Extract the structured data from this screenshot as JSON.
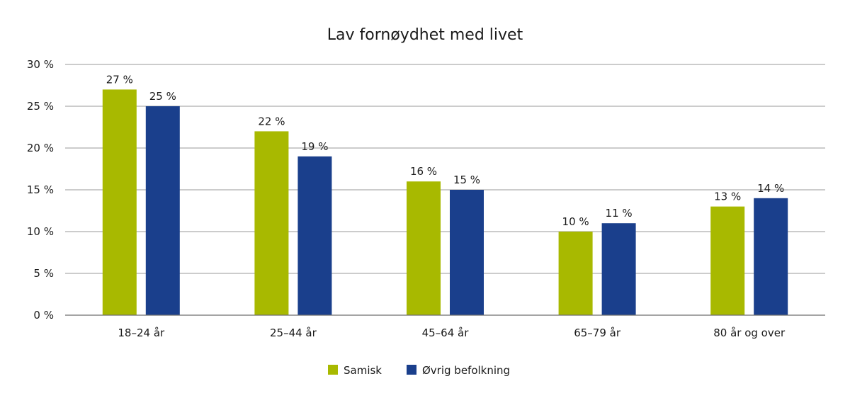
{
  "chart_data": {
    "type": "bar",
    "title": "Lav fornøydhet med livet",
    "categories": [
      "18–24 år",
      "25–44 år",
      "45–64 år",
      "65–79 år",
      "80 år og over"
    ],
    "series": [
      {
        "name": "Samisk",
        "color": "#a8b900",
        "values": [
          27,
          22,
          16,
          10,
          13
        ],
        "labels": [
          "27 %",
          "22 %",
          "16 %",
          "10 %",
          "13 %"
        ]
      },
      {
        "name": "Øvrig befolkning",
        "color": "#1a3f8c",
        "values": [
          25,
          19,
          15,
          11,
          14
        ],
        "labels": [
          "25 %",
          "19 %",
          "15 %",
          "11 %",
          "14 %"
        ]
      }
    ],
    "ylim": [
      0,
      30
    ],
    "yticks": [
      {
        "value": 0,
        "label": "0 %"
      },
      {
        "value": 5,
        "label": "5 %"
      },
      {
        "value": 10,
        "label": "10 %"
      },
      {
        "value": 15,
        "label": "15 %"
      },
      {
        "value": 20,
        "label": "20 %"
      },
      {
        "value": 25,
        "label": "25 %"
      },
      {
        "value": 30,
        "label": "30 %"
      }
    ],
    "grid": true,
    "legend_position": "bottom-center"
  }
}
